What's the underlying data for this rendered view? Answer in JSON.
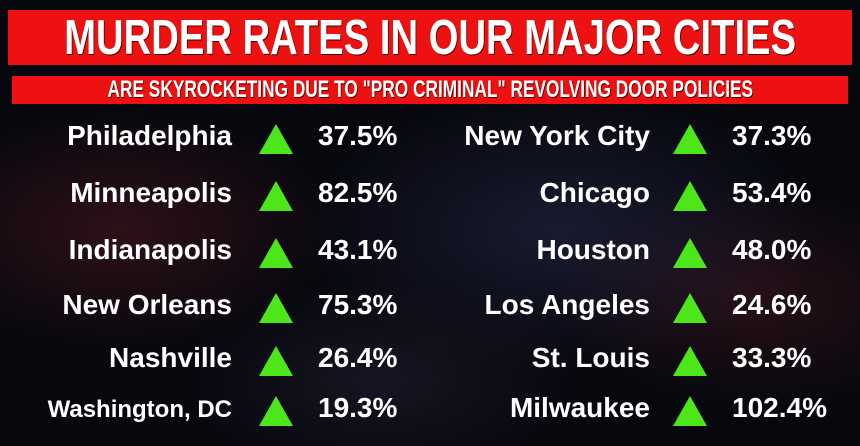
{
  "title": "MURDER RATES IN OUR MAJOR CITIES",
  "subtitle": "ARE SKYROCKETING DUE TO \"PRO CRIMINAL\" REVOLVING DOOR POLICIES",
  "colors": {
    "banner": "#ee1111",
    "up_arrow": "#4de61a"
  },
  "left": [
    {
      "city": "Philadelphia",
      "change": "37.5%"
    },
    {
      "city": "Minneapolis",
      "change": "82.5%"
    },
    {
      "city": "Indianapolis",
      "change": "43.1%"
    },
    {
      "city": "New Orleans",
      "change": "75.3%"
    },
    {
      "city": "Nashville",
      "change": "26.4%"
    },
    {
      "city": "Washington, DC",
      "change": "19.3%"
    }
  ],
  "right": [
    {
      "city": "New York City",
      "change": "37.3%"
    },
    {
      "city": "Chicago",
      "change": "53.4%"
    },
    {
      "city": "Houston",
      "change": "48.0%"
    },
    {
      "city": "Los Angeles",
      "change": "24.6%"
    },
    {
      "city": "St. Louis",
      "change": "33.3%"
    },
    {
      "city": "Milwaukee",
      "change": "102.4%"
    }
  ]
}
